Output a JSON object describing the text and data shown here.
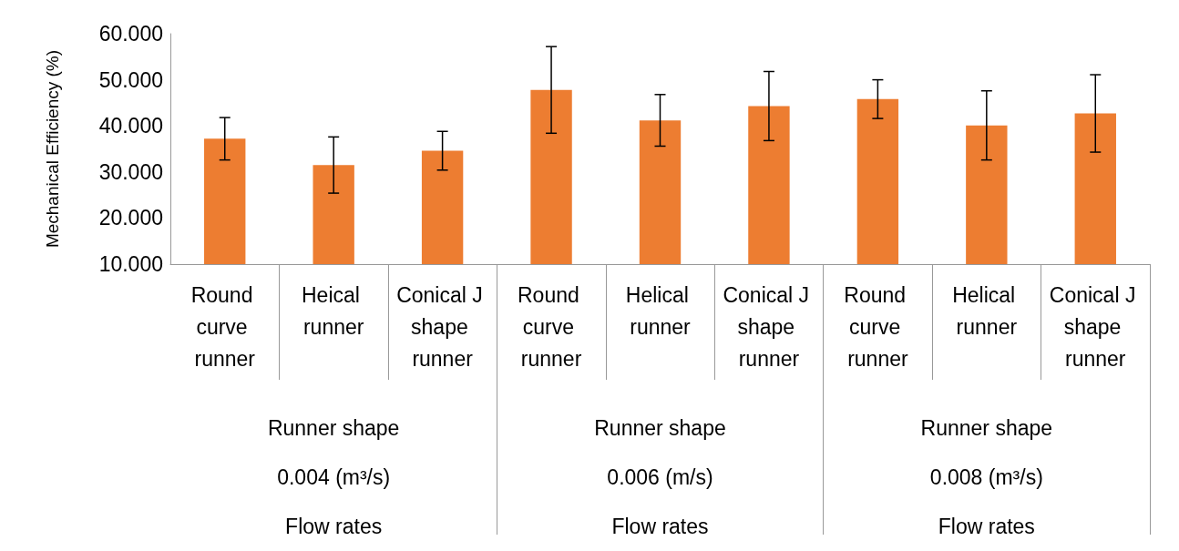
{
  "chart_data": {
    "type": "bar",
    "ylabel": "Mechanical Efficiency (%)",
    "categories": [
      "Round curve runner",
      "Heical runner",
      "Conical J shape runner",
      "Round curve runner",
      "Helical runner",
      "Conical J shape runner",
      "Round curve runner",
      "Helical runner",
      "Conical J shape runner"
    ],
    "values": [
      37.2,
      31.5,
      34.6,
      47.8,
      41.2,
      44.3,
      45.8,
      40.1,
      42.7
    ],
    "errors": [
      4.6,
      6.1,
      4.2,
      9.4,
      5.6,
      7.5,
      4.2,
      7.5,
      8.4
    ],
    "color": "#ed7d31",
    "ylim": [
      10,
      60
    ],
    "yticks": [
      {
        "value": 10,
        "label": "10.000"
      },
      {
        "value": 20,
        "label": "20.000"
      },
      {
        "value": 30,
        "label": "30.000"
      },
      {
        "value": 40,
        "label": "40.000"
      },
      {
        "value": 50,
        "label": "50.000"
      },
      {
        "value": 60,
        "label": "60.000"
      }
    ],
    "annotations": [
      "Runner shape",
      "0.004 (m³/s)",
      "Flow rates",
      "Runner shape",
      "0.006 (m/s)",
      "Flow rates",
      "Runner shape",
      "0.008 (m³/s)",
      "Flow rates"
    ],
    "grid": false
  }
}
